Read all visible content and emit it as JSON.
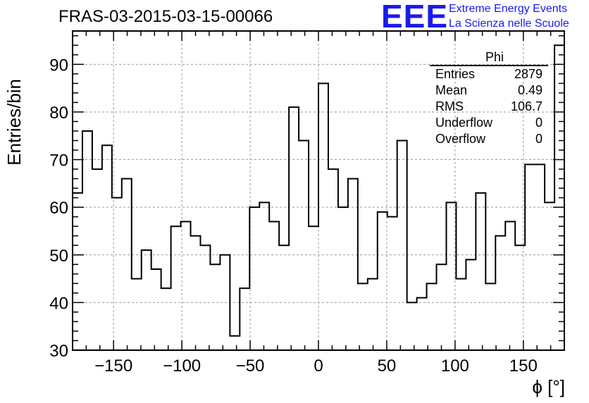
{
  "title": "FRAS-03-2015-03-15-00066",
  "logo": {
    "mark": "EEE",
    "line1": "Extreme Energy Events",
    "line2": "La Scienza nelle Scuole"
  },
  "stats": {
    "name": "Phi",
    "rows": [
      {
        "label": "Entries",
        "value": "2879"
      },
      {
        "label": "Mean",
        "value": "0.49"
      },
      {
        "label": "RMS",
        "value": "106.7"
      },
      {
        "label": "Underflow",
        "value": "0"
      },
      {
        "label": "Overflow",
        "value": "0"
      }
    ]
  },
  "chart_data": {
    "type": "histogram",
    "title": "FRAS-03-2015-03-15-00066",
    "xlabel": "ϕ [°]",
    "ylabel": "Entries/bin",
    "xlim": [
      -180,
      180
    ],
    "ylim": [
      30,
      97
    ],
    "bin_width": 7.2,
    "x_ticks": [
      -150,
      -100,
      -50,
      0,
      50,
      100,
      150
    ],
    "x_tick_labels": [
      "−150",
      "−100",
      "−50",
      "0",
      "50",
      "100",
      "150"
    ],
    "y_ticks": [
      30,
      40,
      50,
      60,
      70,
      80,
      90
    ],
    "y_tick_labels": [
      "30",
      "40",
      "50",
      "60",
      "70",
      "80",
      "90"
    ],
    "grid": true,
    "values": [
      63,
      76,
      68,
      73,
      62,
      66,
      45,
      51,
      47,
      43,
      56,
      57,
      54,
      52,
      48,
      50,
      33,
      43,
      60,
      61,
      57,
      52,
      81,
      74,
      56,
      86,
      68,
      60,
      66,
      44,
      45,
      59,
      58,
      74,
      40,
      41,
      44,
      48,
      61,
      45,
      49,
      63,
      44,
      54,
      57,
      52,
      69,
      69,
      61,
      94
    ]
  }
}
